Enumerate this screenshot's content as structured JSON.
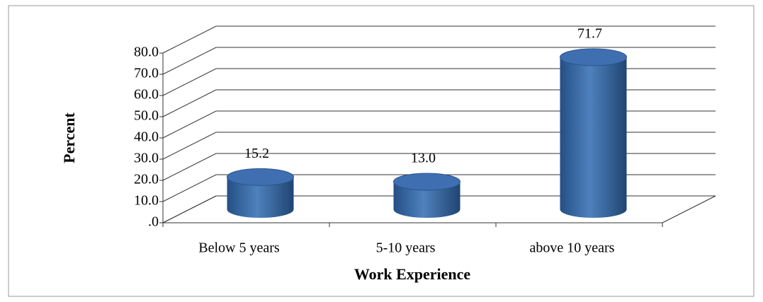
{
  "chart_data": {
    "type": "bar3d",
    "y_axis_label": "Percent",
    "x_axis_label": "Work Experience",
    "categories": [
      "Below 5 years",
      "5-10 years",
      "above 10 years"
    ],
    "values": [
      15.2,
      13.0,
      71.7
    ],
    "value_labels": [
      "15.2",
      "13.0",
      "71.7"
    ],
    "color": "#4f81bd",
    "ylim": [
      0,
      80
    ],
    "yticks": [
      {
        "value": 0,
        "label": ".0"
      },
      {
        "value": 10,
        "label": "10.0"
      },
      {
        "value": 20,
        "label": "20.0"
      },
      {
        "value": 30,
        "label": "30.0"
      },
      {
        "value": 40,
        "label": "40.0"
      },
      {
        "value": 50,
        "label": "50.0"
      },
      {
        "value": 60,
        "label": "60.0"
      },
      {
        "value": 70,
        "label": "70.0"
      },
      {
        "value": 80,
        "label": "80.0"
      }
    ],
    "grid": true
  }
}
